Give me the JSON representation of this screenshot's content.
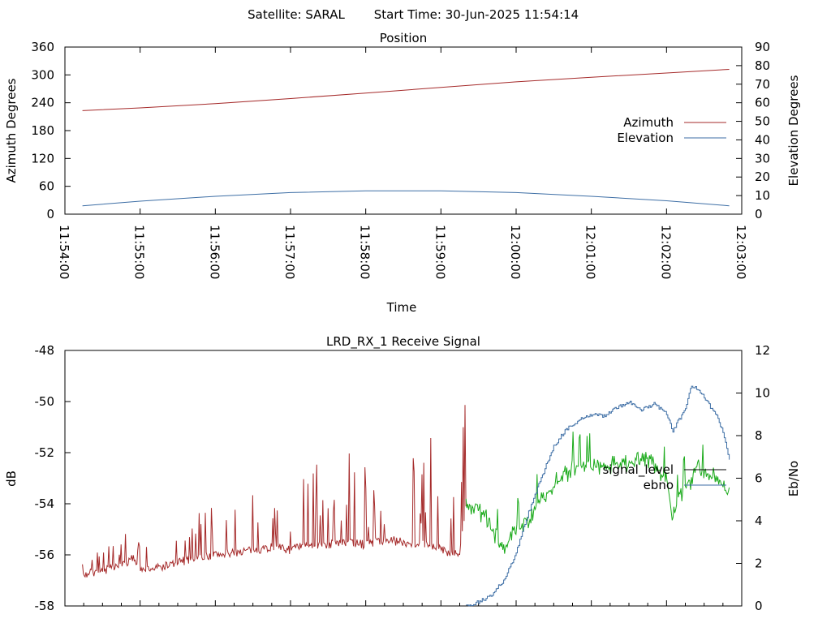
{
  "header": {
    "satellite": "Satellite: SARAL",
    "start_time": "Start Time: 30-Jun-2025 11:54:14"
  },
  "chart_data": [
    {
      "type": "line",
      "title": "Position",
      "xlabel": "Time",
      "ylabel": "Azimuth Degrees",
      "y2label": "Elevation Degrees",
      "xlim": [
        "11:54:00",
        "12:03:00"
      ],
      "ylim": [
        0,
        360
      ],
      "y2lim": [
        0,
        90
      ],
      "xticks": [
        "11:54:00",
        "11:55:00",
        "11:56:00",
        "11:57:00",
        "11:58:00",
        "11:59:00",
        "12:00:00",
        "12:01:00",
        "12:02:00",
        "12:03:00"
      ],
      "yticks": [
        "0",
        "60",
        "120",
        "180",
        "240",
        "300",
        "360"
      ],
      "y2ticks": [
        "0",
        "10",
        "20",
        "30",
        "40",
        "50",
        "60",
        "70",
        "80",
        "90"
      ],
      "legend_position": "right",
      "grid": false,
      "series": [
        {
          "name": "Azimuth",
          "axis": "left",
          "color": "#a52a2a",
          "points": [
            [
              "11:54:14",
              223
            ],
            [
              "11:55:00",
              229
            ],
            [
              "11:56:00",
              238
            ],
            [
              "11:57:00",
              249
            ],
            [
              "11:58:00",
              261
            ],
            [
              "11:59:00",
              273
            ],
            [
              "12:00:00",
              285
            ],
            [
              "12:01:00",
              295
            ],
            [
              "12:02:00",
              304
            ],
            [
              "12:02:50",
              312
            ]
          ]
        },
        {
          "name": "Elevation",
          "axis": "right",
          "color": "#3d6ea5",
          "points": [
            [
              "11:54:14",
              4.5
            ],
            [
              "11:55:00",
              7
            ],
            [
              "11:56:00",
              9.6
            ],
            [
              "11:57:00",
              11.6
            ],
            [
              "11:58:00",
              12.6
            ],
            [
              "11:59:00",
              12.6
            ],
            [
              "12:00:00",
              11.6
            ],
            [
              "12:01:00",
              9.6
            ],
            [
              "12:02:00",
              7.2
            ],
            [
              "12:02:50",
              4.5
            ]
          ]
        }
      ]
    },
    {
      "type": "line",
      "title": "LRD_RX_1 Receive Signal",
      "ylabel": "dB",
      "y2label": "Eb/No",
      "ylim": [
        -58,
        -48
      ],
      "y2lim": [
        0,
        12
      ],
      "yticks": [
        "-58",
        "-56",
        "-54",
        "-52",
        "-50",
        "-48"
      ],
      "y2ticks": [
        "0",
        "2",
        "4",
        "6",
        "8",
        "10",
        "12"
      ],
      "legend_position": "right",
      "grid": false,
      "series": [
        {
          "name": "signal_level",
          "axis": "left",
          "color": "#000000",
          "segments": [
            {
              "color": "#a52a2a",
              "from": "11:54:14",
              "to": "11:59:20"
            },
            {
              "color": "#1aaa1a",
              "from": "11:59:20",
              "to": "12:02:50"
            }
          ],
          "points": [
            [
              "11:54:14",
              -56.8
            ],
            [
              "11:54:30",
              -56.6
            ],
            [
              "11:54:45",
              -56.5
            ],
            [
              "11:54:55",
              -56.1
            ],
            [
              "11:55:00",
              -56.6
            ],
            [
              "11:55:15",
              -56.5
            ],
            [
              "11:55:30",
              -56.3
            ],
            [
              "11:55:45",
              -56.1
            ],
            [
              "11:56:00",
              -56.0
            ],
            [
              "11:56:15",
              -55.9
            ],
            [
              "11:56:30",
              -55.8
            ],
            [
              "11:56:45",
              -55.7
            ],
            [
              "11:57:00",
              -55.8
            ],
            [
              "11:57:15",
              -55.6
            ],
            [
              "11:57:30",
              -55.6
            ],
            [
              "11:57:45",
              -55.5
            ],
            [
              "11:58:00",
              -55.6
            ],
            [
              "11:58:15",
              -55.4
            ],
            [
              "11:58:30",
              -55.5
            ],
            [
              "11:58:45",
              -55.6
            ],
            [
              "11:59:00",
              -55.8
            ],
            [
              "11:59:15",
              -56.0
            ],
            [
              "11:59:20",
              -54.0
            ],
            [
              "11:59:35",
              -54.5
            ],
            [
              "11:59:50",
              -55.8
            ],
            [
              "12:00:00",
              -55.0
            ],
            [
              "12:00:10",
              -54.6
            ],
            [
              "12:00:20",
              -53.8
            ],
            [
              "12:00:30",
              -53.2
            ],
            [
              "12:00:45",
              -52.6
            ],
            [
              "12:01:00",
              -52.5
            ],
            [
              "12:01:15",
              -52.5
            ],
            [
              "12:01:30",
              -52.4
            ],
            [
              "12:01:45",
              -52.2
            ],
            [
              "12:02:00",
              -53.0
            ],
            [
              "12:02:05",
              -54.4
            ],
            [
              "12:02:15",
              -53.4
            ],
            [
              "12:02:25",
              -52.6
            ],
            [
              "12:02:35",
              -52.8
            ],
            [
              "12:02:45",
              -53.1
            ],
            [
              "12:02:50",
              -53.6
            ]
          ]
        },
        {
          "name": "ebno",
          "axis": "right",
          "color": "#3d6ea5",
          "points": [
            [
              "11:59:20",
              0.0
            ],
            [
              "11:59:30",
              0.2
            ],
            [
              "11:59:40",
              0.5
            ],
            [
              "11:59:50",
              1.2
            ],
            [
              "12:00:00",
              2.5
            ],
            [
              "12:00:10",
              4.4
            ],
            [
              "12:00:20",
              6.0
            ],
            [
              "12:00:30",
              7.5
            ],
            [
              "12:00:40",
              8.3
            ],
            [
              "12:00:50",
              8.7
            ],
            [
              "12:01:00",
              9.0
            ],
            [
              "12:01:10",
              8.9
            ],
            [
              "12:01:20",
              9.3
            ],
            [
              "12:01:30",
              9.6
            ],
            [
              "12:01:40",
              9.2
            ],
            [
              "12:01:50",
              9.5
            ],
            [
              "12:02:00",
              9.0
            ],
            [
              "12:02:05",
              8.2
            ],
            [
              "12:02:15",
              9.3
            ],
            [
              "12:02:20",
              10.4
            ],
            [
              "12:02:30",
              9.8
            ],
            [
              "12:02:40",
              8.9
            ],
            [
              "12:02:45",
              8.2
            ],
            [
              "12:02:50",
              6.9
            ]
          ]
        }
      ]
    }
  ]
}
